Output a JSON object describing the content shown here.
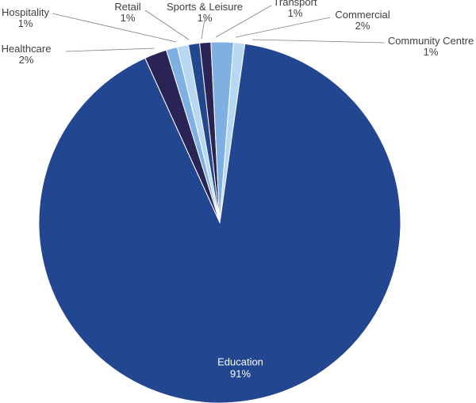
{
  "chart_data": {
    "type": "pie",
    "title": "",
    "slices": [
      {
        "label": "Education",
        "value": 91,
        "percent_label": "91%",
        "color": "#22468f"
      },
      {
        "label": "Healthcare",
        "value": 2,
        "percent_label": "2%",
        "color": "#2a2456"
      },
      {
        "label": "Hospitality",
        "value": 1,
        "percent_label": "1%",
        "color": "#7fb0e3"
      },
      {
        "label": "Retail",
        "value": 1,
        "percent_label": "1%",
        "color": "#b7d8f2"
      },
      {
        "label": "Sports & Leisure",
        "value": 1,
        "percent_label": "1%",
        "color": "#22468f"
      },
      {
        "label": "Transport",
        "value": 1,
        "percent_label": "1%",
        "color": "#2a2456"
      },
      {
        "label": "Commercial",
        "value": 2,
        "percent_label": "2%",
        "color": "#7fb0e3"
      },
      {
        "label": "Community Centre",
        "value": 1,
        "percent_label": "1%",
        "color": "#b7d8f2"
      }
    ]
  }
}
